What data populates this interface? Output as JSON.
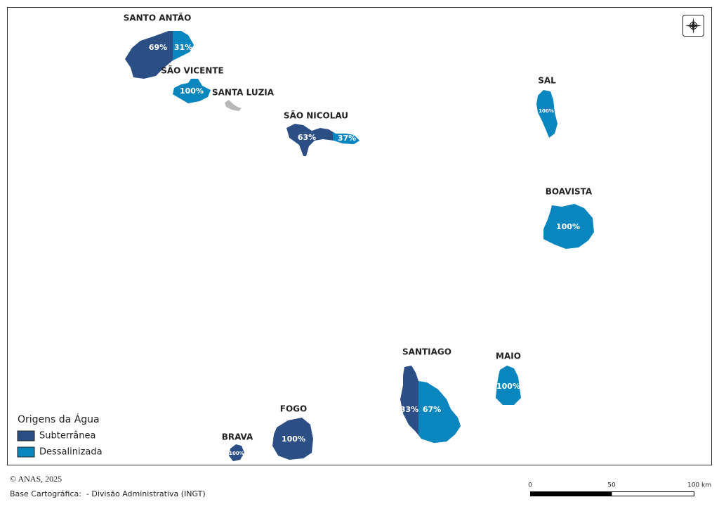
{
  "map": {
    "islands": [
      {
        "name": "SANTO ANTÃO",
        "subterranea": "69%",
        "dessalinizada": "31%"
      },
      {
        "name": "SÃO VICENTE",
        "dessalinizada": "100%"
      },
      {
        "name": "SANTA LUZIA"
      },
      {
        "name": "SÃO NICOLAU",
        "subterranea": "63%",
        "dessalinizada": "37%"
      },
      {
        "name": "SAL",
        "dessalinizada": "100%"
      },
      {
        "name": "BOAVISTA",
        "dessalinizada": "100%"
      },
      {
        "name": "SANTIAGO",
        "subterranea": "33%",
        "dessalinizada": "67%"
      },
      {
        "name": "MAIO",
        "dessalinizada": "100%"
      },
      {
        "name": "FOGO",
        "subterranea": "100%"
      },
      {
        "name": "BRAVA",
        "subterranea": "100%"
      }
    ]
  },
  "legend": {
    "title": "Origens da Água",
    "items": [
      "Subterrânea",
      "Dessalinizada"
    ]
  },
  "footer": {
    "copyright": "© ANAS, 2025",
    "source": "Base Cartográfica:  - Divisão Administrativa (INGT)"
  },
  "scale_bar": {
    "labels": [
      "0",
      "50",
      "100 km"
    ]
  }
}
